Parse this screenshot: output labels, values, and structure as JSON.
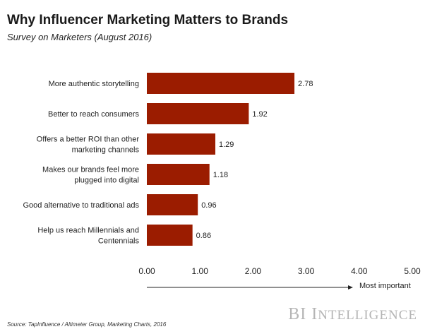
{
  "chart_data": {
    "type": "bar",
    "orientation": "horizontal",
    "title": "Why Influencer Marketing Matters to Brands",
    "subtitle": "Survey on Marketers (August 2016)",
    "categories": [
      [
        "More authentic storytelling"
      ],
      [
        "Better to reach consumers"
      ],
      [
        "Offers a better ROI than other",
        "marketing channels"
      ],
      [
        "Makes our brands feel more",
        "plugged into digital"
      ],
      [
        "Good alternative to traditional ads"
      ],
      [
        "Help us reach Millennials and",
        "Centennials"
      ]
    ],
    "values": [
      2.78,
      1.92,
      1.29,
      1.18,
      0.96,
      0.86
    ],
    "value_labels": [
      "2.78",
      "1.92",
      "1.29",
      "1.18",
      "0.96",
      "0.86"
    ],
    "xlim": [
      0,
      5
    ],
    "ticks": [
      "0.00",
      "1.00",
      "2.00",
      "3.00",
      "4.00",
      "5.00"
    ],
    "tick_values": [
      0,
      1,
      2,
      3,
      4,
      5
    ],
    "axis_note": "Most important",
    "bar_color": "#9b1c00",
    "grid": false,
    "legend": "none"
  },
  "source": "Source: TapInfluence / Altimeter Group, Marketing Charts,  2016",
  "brand": {
    "first": "BI",
    "cap": "I",
    "rest": "NTELLIGENCE"
  }
}
